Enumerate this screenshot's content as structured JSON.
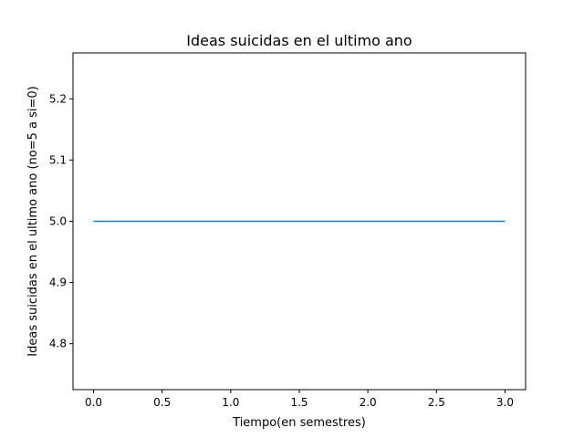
{
  "chart_data": {
    "type": "line",
    "title": "Ideas suicidas en el ultimo ano",
    "xlabel": "Tiempo(en semestres)",
    "ylabel": "Ideas suicidas en el ultimo ano (no=5 a si=0)",
    "xlim": [
      -0.15,
      3.15
    ],
    "ylim": [
      4.725,
      5.275
    ],
    "x_ticks": [
      0.0,
      0.5,
      1.0,
      1.5,
      2.0,
      2.5,
      3.0
    ],
    "x_tick_labels": [
      "0.0",
      "0.5",
      "1.0",
      "1.5",
      "2.0",
      "2.5",
      "3.0"
    ],
    "y_ticks": [
      4.8,
      4.9,
      5.0,
      5.1,
      5.2
    ],
    "y_tick_labels": [
      "4.8",
      "4.9",
      "5.0",
      "5.1",
      "5.2"
    ],
    "grid": false,
    "series": [
      {
        "color": "#1f77b4",
        "x": [
          0,
          1,
          2,
          3
        ],
        "y": [
          5,
          5,
          5,
          5
        ]
      }
    ]
  }
}
